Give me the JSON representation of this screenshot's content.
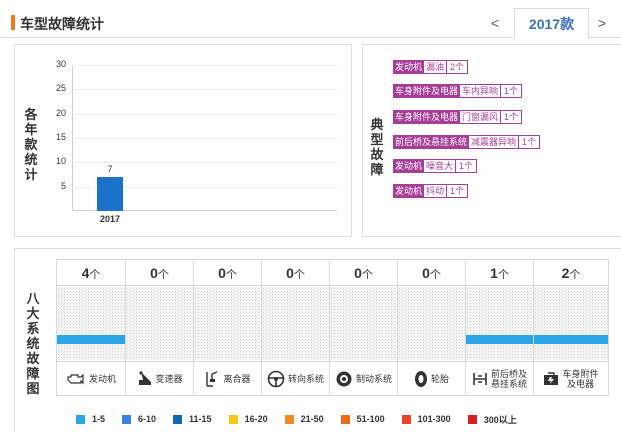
{
  "header": {
    "title": "车型故障统计",
    "prev_label": "<",
    "year_tab": "2017款",
    "next_label": ">"
  },
  "year_chart": {
    "side_label": [
      "各",
      "年",
      "款",
      "统",
      "计"
    ]
  },
  "chart_data": {
    "type": "bar",
    "categories": [
      "2017"
    ],
    "values": [
      7
    ],
    "data_labels": [
      "7"
    ],
    "ylim": [
      0,
      30
    ],
    "yticks": [
      5,
      10,
      15,
      20,
      25,
      30
    ],
    "title": "",
    "xlabel": "",
    "ylabel": "",
    "bar_color": "#1a73c8",
    "grid": true
  },
  "typical": {
    "side_label": [
      "典",
      "型",
      "故",
      "障"
    ],
    "items": [
      {
        "category": "发动机",
        "issue": "漏油",
        "count": "2个"
      },
      {
        "category": "车身附件及电器",
        "issue": "车内异响",
        "count": "1个"
      },
      {
        "category": "车身附件及电器",
        "issue": "门窗漏风",
        "count": "1个"
      },
      {
        "category": "前后桥及悬挂系统",
        "issue": "减震器异响",
        "count": "1个"
      },
      {
        "category": "发动机",
        "issue": "噪音大",
        "count": "1个"
      },
      {
        "category": "发动机",
        "issue": "抖动",
        "count": "1个"
      }
    ],
    "tag_color": "#a63d97"
  },
  "systems": {
    "side_label": [
      "八",
      "大",
      "系",
      "统",
      "故",
      "障",
      "图"
    ],
    "unit": "个",
    "items": [
      {
        "count": "4",
        "name": "发动机",
        "icon": "engine-icon",
        "level": 1
      },
      {
        "count": "0",
        "name": "变速器",
        "icon": "gearbox-icon",
        "level": 0
      },
      {
        "count": "0",
        "name": "离合器",
        "icon": "clutch-icon",
        "level": 0
      },
      {
        "count": "0",
        "name": "转向系统",
        "icon": "steering-wheel-icon",
        "level": 0
      },
      {
        "count": "0",
        "name": "制动系统",
        "icon": "brake-icon",
        "level": 0
      },
      {
        "count": "0",
        "name": "轮胎",
        "icon": "tire-icon",
        "level": 0
      },
      {
        "count": "1",
        "name_lines": [
          "前后桥及",
          "悬挂系统"
        ],
        "icon": "axle-icon",
        "level": 1
      },
      {
        "count": "2",
        "name_lines": [
          "车身附件",
          "及电器"
        ],
        "icon": "body-electric-icon",
        "level": 1
      }
    ],
    "fill_color": "#2aa5e6"
  },
  "legend": [
    {
      "label": "1-5",
      "color": "#2aa5e6"
    },
    {
      "label": "6-10",
      "color": "#3b82e0"
    },
    {
      "label": "11-15",
      "color": "#1565b0"
    },
    {
      "label": "16-20",
      "color": "#f5c518"
    },
    {
      "label": "21-50",
      "color": "#f08a24"
    },
    {
      "label": "51-100",
      "color": "#ef6a16"
    },
    {
      "label": "101-300",
      "color": "#e8452b"
    },
    {
      "label": "300以上",
      "color": "#d81e1e"
    }
  ]
}
